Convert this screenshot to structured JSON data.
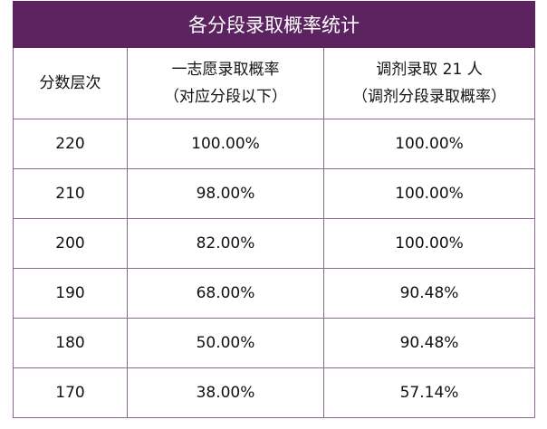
{
  "title": "各分段录取概率统计",
  "headers": {
    "col1": "分数层次",
    "col2_line1": "一志愿录取概率",
    "col2_line2": "（对应分段以下）",
    "col3_line1": "调剂录取 21 人",
    "col3_line2": "（调剂分段录取概率）"
  },
  "rows": [
    {
      "score": "220",
      "first": "100.00%",
      "adjust": "100.00%"
    },
    {
      "score": "210",
      "first": "98.00%",
      "adjust": "100.00%"
    },
    {
      "score": "200",
      "first": "82.00%",
      "adjust": "100.00%"
    },
    {
      "score": "190",
      "first": "68.00%",
      "adjust": "90.48%"
    },
    {
      "score": "180",
      "first": "50.00%",
      "adjust": "90.48%"
    },
    {
      "score": "170",
      "first": "38.00%",
      "adjust": "57.14%"
    }
  ],
  "colors": {
    "header_bg": "#5c2360",
    "border": "#8a6a8e"
  }
}
